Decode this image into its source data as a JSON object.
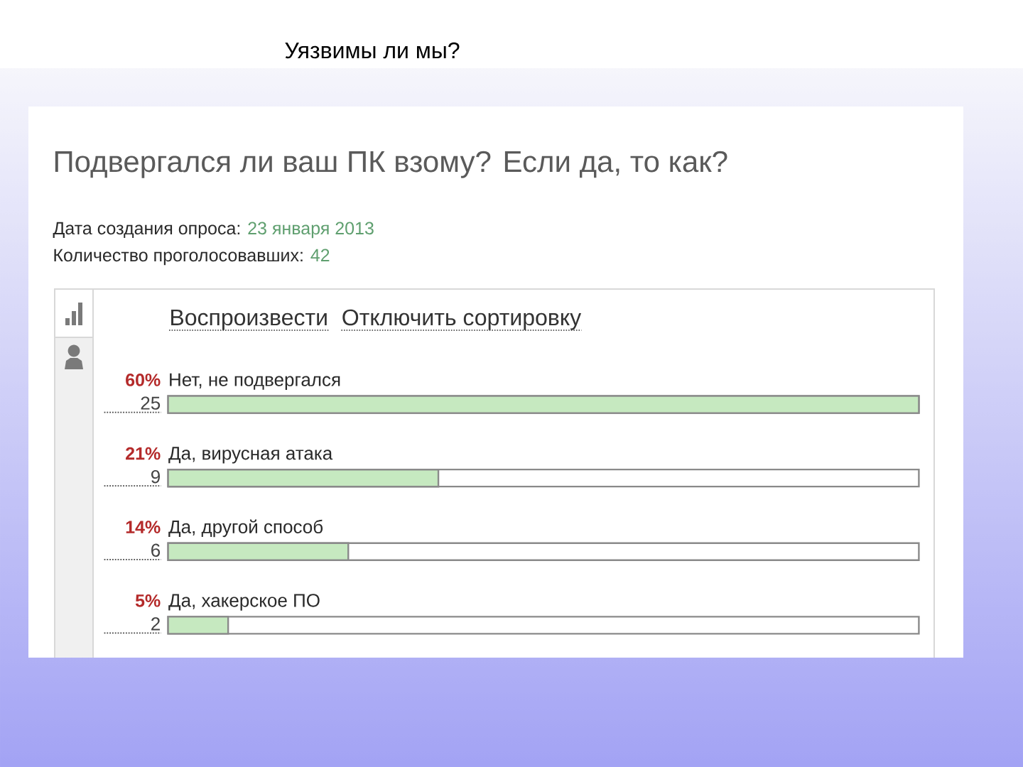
{
  "chart_data": {
    "type": "bar",
    "orientation": "horizontal",
    "title": "Уязвимы ли мы?",
    "subtitle": "Подвергался ли ваш ПК взому? Если да, то как?",
    "categories": [
      "Нет, не подвергался",
      "Да, вирусная атака",
      "Да, другой способ",
      "Да, хакерское ПО"
    ],
    "values": [
      25,
      9,
      6,
      2
    ],
    "color": "#c6e9c0",
    "data_labels": true,
    "annotations": [
      "60%",
      "21%",
      "14%",
      "5%",
      "Дата создания опроса:",
      "23 января 2013",
      "Количество проголосовавших:",
      "42",
      "Воспроизвести",
      "Отключить сортировку"
    ]
  }
}
